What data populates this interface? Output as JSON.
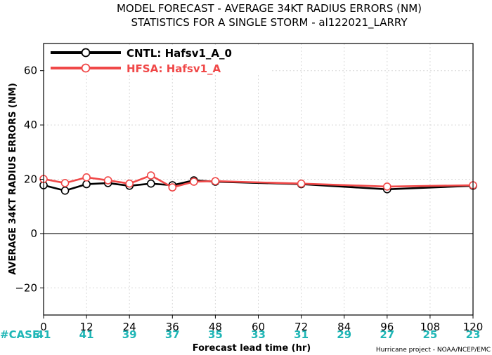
{
  "chart_data": {
    "type": "line",
    "title_line1": "MODEL FORECAST - AVERAGE 34KT RADIUS ERRORS (NM)",
    "title_line2": "STATISTICS FOR A SINGLE STORM - al122021_LARRY",
    "xlabel": "Forecast lead time (hr)",
    "ylabel": "AVERAGE 34KT RADIUS ERRORS (NM)",
    "xlim": [
      0,
      120
    ],
    "ylim": [
      -30,
      70
    ],
    "x_ticks": [
      0,
      12,
      24,
      36,
      48,
      60,
      72,
      84,
      96,
      108,
      120
    ],
    "y_ticks": [
      -20,
      0,
      20,
      40,
      60
    ],
    "grid": true,
    "legend_position": "top-left",
    "series": [
      {
        "name": "CNTL: Hafsv1_A_0",
        "color": "#000000",
        "x": [
          0,
          6,
          12,
          18,
          24,
          30,
          36,
          42,
          48,
          72,
          96,
          120
        ],
        "y": [
          17.8,
          15.8,
          18.2,
          18.6,
          17.6,
          18.4,
          17.8,
          19.6,
          19.1,
          18.2,
          16.3,
          17.6
        ]
      },
      {
        "name": "HFSA: Hafsv1_A",
        "color": "#f04848",
        "x": [
          0,
          6,
          12,
          18,
          24,
          30,
          36,
          42,
          48,
          72,
          96,
          120
        ],
        "y": [
          20.1,
          18.6,
          20.7,
          19.6,
          18.4,
          21.4,
          17.0,
          19.1,
          19.3,
          18.4,
          17.3,
          17.8
        ]
      }
    ],
    "case_label": "#CASE",
    "case_counts": [
      "41",
      "41",
      "39",
      "37",
      "35",
      "33",
      "31",
      "29",
      "27",
      "25",
      "23"
    ]
  },
  "credit": "Hurricane project - NOAA/NCEP/EMC"
}
